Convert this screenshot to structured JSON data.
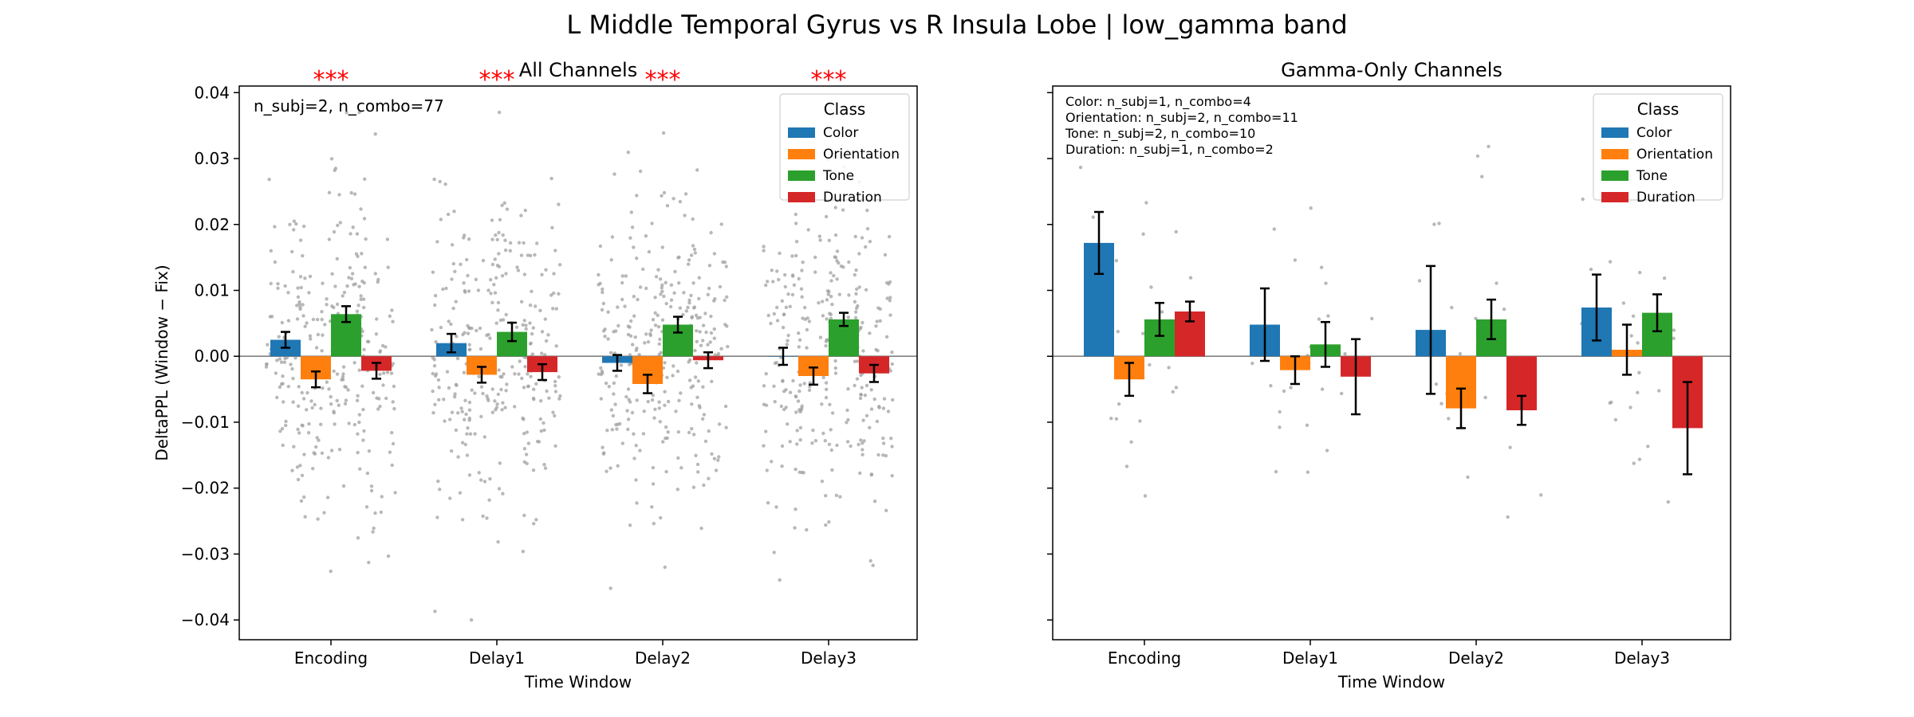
{
  "suptitle": "L Middle Temporal Gyrus vs R Insula Lobe  |  low_gamma band",
  "colors": {
    "Color": "#1f77b4",
    "Orientation": "#ff7f0e",
    "Tone": "#2ca02c",
    "Duration": "#d62728",
    "points": "#a0a0a0",
    "significance": "#ff0000",
    "errorbar": "#000000",
    "zeroline": "#808080"
  },
  "chart_data": [
    {
      "type": "bar",
      "title": "All Channels",
      "xlabel": "Time Window",
      "ylabel": "DeltaPPL (Window − Fix)",
      "categories": [
        "Encoding",
        "Delay1",
        "Delay2",
        "Delay3"
      ],
      "ylim": [
        -0.043,
        0.041
      ],
      "yticks": [
        "0.04",
        "0.03",
        "0.02",
        "0.01",
        "0.00",
        "−0.01",
        "−0.02",
        "−0.03",
        "−0.04"
      ],
      "ytick_values": [
        0.04,
        0.03,
        0.02,
        0.01,
        0.0,
        -0.01,
        -0.02,
        -0.03,
        -0.04
      ],
      "annotation": "n_subj=2, n_combo=77",
      "significance": [
        "***",
        "***",
        "***",
        "***"
      ],
      "legend": {
        "title": "Class",
        "placement": "top-right",
        "entries": [
          "Color",
          "Orientation",
          "Tone",
          "Duration"
        ]
      },
      "series": [
        {
          "name": "Color",
          "values": [
            0.0025,
            0.002,
            -0.001,
            0.0
          ],
          "err": [
            0.0012,
            0.0014,
            0.0012,
            0.0013
          ]
        },
        {
          "name": "Orientation",
          "values": [
            -0.0035,
            -0.0028,
            -0.0042,
            -0.003
          ],
          "err": [
            0.0012,
            0.0012,
            0.0014,
            0.0013
          ]
        },
        {
          "name": "Tone",
          "values": [
            0.0064,
            0.0037,
            0.0048,
            0.0056
          ],
          "err": [
            0.0012,
            0.0014,
            0.0012,
            0.001
          ]
        },
        {
          "name": "Duration",
          "values": [
            -0.0022,
            -0.0024,
            -0.0006,
            -0.0026
          ],
          "err": [
            0.0012,
            0.0012,
            0.0012,
            0.0013
          ]
        }
      ],
      "scatter": {
        "points_per_group": 77,
        "spread": 0.012
      }
    },
    {
      "type": "bar",
      "title": "Gamma-Only Channels",
      "xlabel": "Time Window",
      "ylabel": "",
      "categories": [
        "Encoding",
        "Delay1",
        "Delay2",
        "Delay3"
      ],
      "ylim": [
        -0.043,
        0.041
      ],
      "annotations": [
        "Color: n_subj=1, n_combo=4",
        "Orientation: n_subj=2, n_combo=11",
        "Tone: n_subj=2, n_combo=10",
        "Duration: n_subj=1, n_combo=2"
      ],
      "legend": {
        "title": "Class",
        "placement": "top-right",
        "entries": [
          "Color",
          "Orientation",
          "Tone",
          "Duration"
        ]
      },
      "series": [
        {
          "name": "Color",
          "values": [
            0.0172,
            0.0048,
            0.004,
            0.0074
          ],
          "err": [
            0.0047,
            0.0055,
            0.0097,
            0.005
          ]
        },
        {
          "name": "Orientation",
          "values": [
            -0.0035,
            -0.0021,
            -0.0079,
            0.001
          ],
          "err": [
            0.0025,
            0.0021,
            0.003,
            0.0038
          ]
        },
        {
          "name": "Tone",
          "values": [
            0.0056,
            0.0018,
            0.0056,
            0.0066
          ],
          "err": [
            0.0025,
            0.0034,
            0.003,
            0.0028
          ]
        },
        {
          "name": "Duration",
          "values": [
            0.0068,
            -0.0031,
            -0.0082,
            -0.0109
          ],
          "err": [
            0.0015,
            0.0057,
            0.0022,
            0.007
          ]
        }
      ],
      "scatter": {
        "counts": [
          4,
          11,
          10,
          2
        ],
        "spread": 0.01
      }
    }
  ]
}
